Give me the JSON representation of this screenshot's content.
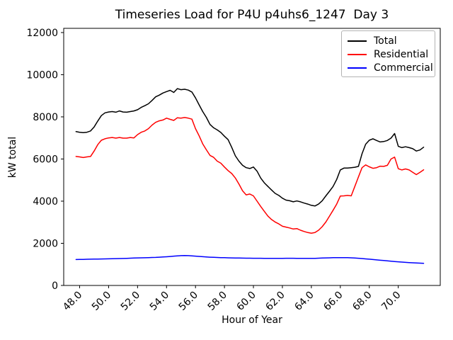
{
  "chart_data": {
    "type": "line",
    "title": "Timeseries Load for P4U p4uhs6_1247  Day 3",
    "xlabel": "Hour of Year",
    "ylabel": "kW total",
    "grid": false,
    "legend_position": "upper right",
    "background_color": "#ffffff",
    "axis_color": "#000000",
    "xlim": [
      46.9,
      72.9
    ],
    "ylim": [
      0,
      12200
    ],
    "xticks": [
      48,
      50,
      52,
      54,
      56,
      58,
      60,
      62,
      64,
      66,
      68,
      70
    ],
    "xtick_labels": [
      "48.0",
      "50.0",
      "52.0",
      "54.0",
      "56.0",
      "58.0",
      "60.0",
      "62.0",
      "64.0",
      "66.0",
      "68.0",
      "70.0"
    ],
    "yticks": [
      0,
      2000,
      4000,
      6000,
      8000,
      10000,
      12000
    ],
    "ytick_labels": [
      "0",
      "2000",
      "4000",
      "6000",
      "8000",
      "10000",
      "12000"
    ],
    "x": [
      47.75,
      48.0,
      48.25,
      48.5,
      48.75,
      49.0,
      49.25,
      49.5,
      49.75,
      50.0,
      50.25,
      50.5,
      50.75,
      51.0,
      51.25,
      51.5,
      51.75,
      52.0,
      52.25,
      52.5,
      52.75,
      53.0,
      53.25,
      53.5,
      53.75,
      54.0,
      54.25,
      54.5,
      54.75,
      55.0,
      55.25,
      55.5,
      55.75,
      56.0,
      56.25,
      56.5,
      56.75,
      57.0,
      57.25,
      57.5,
      57.75,
      58.0,
      58.25,
      58.5,
      58.75,
      59.0,
      59.25,
      59.5,
      59.75,
      60.0,
      60.25,
      60.5,
      60.75,
      61.0,
      61.25,
      61.5,
      61.75,
      62.0,
      62.25,
      62.5,
      62.75,
      63.0,
      63.25,
      63.5,
      63.75,
      64.0,
      64.25,
      64.5,
      64.75,
      65.0,
      65.25,
      65.5,
      65.75,
      66.0,
      66.25,
      66.5,
      66.75,
      67.0,
      67.25,
      67.5,
      67.75,
      68.0,
      68.25,
      68.5,
      68.75,
      69.0,
      69.25,
      69.5,
      69.75,
      70.0,
      70.25,
      70.5,
      70.75,
      71.0,
      71.25,
      71.5,
      71.75
    ],
    "series": [
      {
        "name": "Total",
        "color": "#000000",
        "values": [
          7300,
          7270,
          7250,
          7270,
          7330,
          7520,
          7800,
          8060,
          8190,
          8230,
          8250,
          8220,
          8280,
          8230,
          8220,
          8250,
          8280,
          8340,
          8450,
          8530,
          8620,
          8780,
          8950,
          9030,
          9130,
          9200,
          9260,
          9160,
          9340,
          9290,
          9310,
          9270,
          9180,
          8900,
          8570,
          8250,
          7980,
          7640,
          7480,
          7380,
          7260,
          7080,
          6920,
          6550,
          6150,
          5900,
          5700,
          5590,
          5550,
          5620,
          5420,
          5100,
          4870,
          4700,
          4530,
          4370,
          4270,
          4140,
          4050,
          4020,
          3970,
          4010,
          3970,
          3910,
          3860,
          3800,
          3770,
          3860,
          4020,
          4250,
          4470,
          4700,
          5030,
          5480,
          5570,
          5570,
          5590,
          5610,
          5650,
          6250,
          6700,
          6890,
          6960,
          6880,
          6810,
          6830,
          6880,
          6990,
          7210,
          6600,
          6540,
          6580,
          6540,
          6490,
          6380,
          6430,
          6560
        ]
      },
      {
        "name": "Residential",
        "color": "#ff0000",
        "values": [
          6120,
          6100,
          6070,
          6100,
          6120,
          6380,
          6680,
          6890,
          6960,
          7000,
          7020,
          6990,
          7020,
          6990,
          6990,
          7020,
          7000,
          7160,
          7270,
          7330,
          7440,
          7610,
          7740,
          7810,
          7850,
          7940,
          7880,
          7830,
          7960,
          7940,
          7970,
          7940,
          7890,
          7440,
          7100,
          6720,
          6440,
          6170,
          6080,
          5900,
          5800,
          5620,
          5450,
          5310,
          5100,
          4810,
          4490,
          4300,
          4340,
          4250,
          4000,
          3750,
          3520,
          3290,
          3130,
          3010,
          2920,
          2810,
          2770,
          2730,
          2680,
          2700,
          2620,
          2560,
          2510,
          2480,
          2510,
          2620,
          2790,
          3010,
          3290,
          3570,
          3860,
          4240,
          4250,
          4270,
          4250,
          4700,
          5150,
          5590,
          5720,
          5630,
          5560,
          5590,
          5660,
          5650,
          5700,
          6000,
          6090,
          5540,
          5480,
          5530,
          5480,
          5370,
          5260,
          5370,
          5490
        ]
      },
      {
        "name": "Commercial",
        "color": "#0000ff",
        "values": [
          1230,
          1235,
          1238,
          1242,
          1246,
          1250,
          1255,
          1258,
          1262,
          1265,
          1270,
          1274,
          1278,
          1282,
          1288,
          1294,
          1300,
          1306,
          1310,
          1315,
          1320,
          1326,
          1332,
          1340,
          1350,
          1360,
          1375,
          1390,
          1405,
          1415,
          1420,
          1415,
          1405,
          1392,
          1378,
          1364,
          1352,
          1342,
          1334,
          1327,
          1321,
          1316,
          1311,
          1307,
          1303,
          1300,
          1297,
          1295,
          1293,
          1291,
          1290,
          1289,
          1288,
          1287,
          1286,
          1286,
          1287,
          1288,
          1289,
          1290,
          1289,
          1288,
          1287,
          1286,
          1285,
          1284,
          1288,
          1294,
          1300,
          1306,
          1312,
          1317,
          1320,
          1322,
          1321,
          1318,
          1312,
          1303,
          1291,
          1277,
          1262,
          1246,
          1230,
          1214,
          1198,
          1182,
          1166,
          1150,
          1135,
          1121,
          1108,
          1096,
          1085,
          1075,
          1066,
          1058,
          1050
        ]
      }
    ]
  }
}
